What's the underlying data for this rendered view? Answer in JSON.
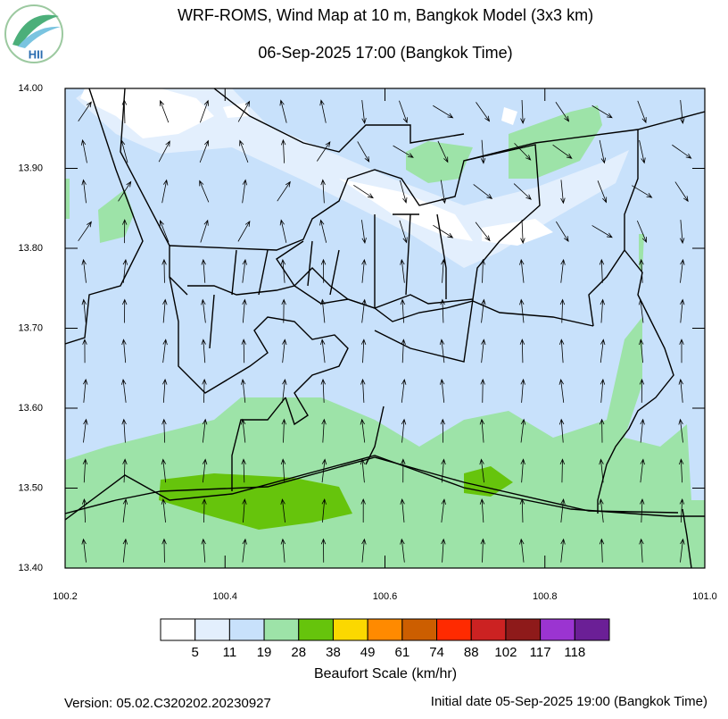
{
  "header": {
    "logo": "HII",
    "title": "WRF-ROMS, Wind Map at 10 m, Bangkok Model (3x3 km)",
    "subtitle": "06-Sep-2025 17:00 (Bangkok Time)"
  },
  "map": {
    "xlim": [
      100.2,
      101.0
    ],
    "ylim": [
      13.4,
      14.0
    ],
    "xticks": [
      100.2,
      100.4,
      100.6,
      100.8,
      {
        "value": 101.0,
        "label": "101.0"
      }
    ],
    "yticks": [
      {
        "value": 13.4,
        "label": "13.40"
      },
      {
        "value": 13.5,
        "label": "13.50"
      },
      {
        "value": 13.6,
        "label": "13.60"
      },
      {
        "value": 13.7,
        "label": "13.70"
      },
      {
        "value": 13.8,
        "label": "13.80"
      },
      {
        "value": 13.9,
        "label": "13.90"
      },
      {
        "value": 14.0,
        "label": "14.00"
      }
    ]
  },
  "colorbar": {
    "title": "Beaufort Scale (km/hr)",
    "colors": [
      "#ffffff",
      "#e3effd",
      "#c8e1fb",
      "#9de3a8",
      "#66c40c",
      "#fbd800",
      "#ff8a00",
      "#cc5e00",
      "#ff2a00",
      "#cc2222",
      "#8e1a1a",
      "#9b34d1",
      "#6b1f96"
    ],
    "labels": [
      5,
      11,
      19,
      28,
      38,
      49,
      61,
      74,
      88,
      102,
      117,
      118
    ]
  },
  "footer": {
    "version": "Version: 05.02.C320202.20230927",
    "initial_date": "Initial date 05-Sep-2025 19:00 (Bangkok Time)"
  }
}
